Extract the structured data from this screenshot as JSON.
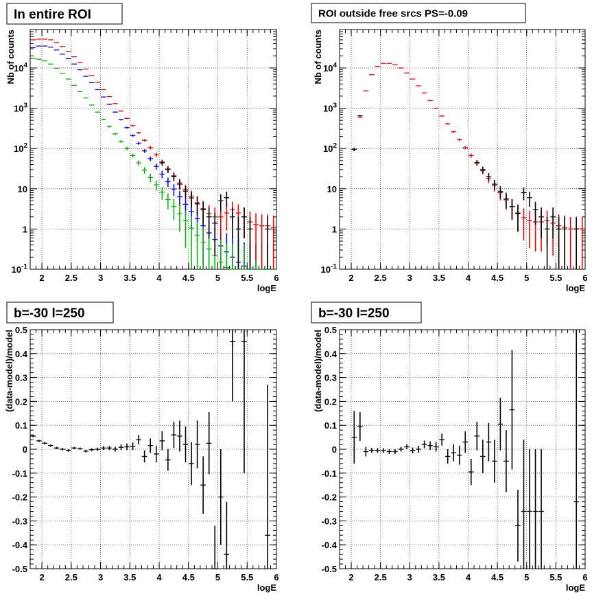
{
  "chart_data": [
    {
      "type": "scatter",
      "title": "In entire ROI",
      "xlabel": "logE",
      "ylabel": "Nb of counts",
      "xlim": [
        1.8,
        6.0
      ],
      "ylim": [
        0.1,
        90000
      ],
      "yscale": "log",
      "grid": true,
      "x_ticks": [
        "2",
        "2.5",
        "3",
        "3.5",
        "4",
        "4.5",
        "5",
        "5.5",
        "6"
      ],
      "y_ticks": [
        "10^{-1}",
        "1",
        "10",
        "10^{2}",
        "10^{3}",
        "10^{4}"
      ],
      "series": [
        {
          "color": "#0000ff",
          "x": [
            1.85,
            1.95,
            2.05,
            2.15,
            2.25,
            2.35,
            2.45,
            2.55,
            2.65,
            2.75,
            2.85,
            2.95,
            3.05,
            3.15,
            3.25,
            3.35,
            3.45,
            3.55,
            3.65,
            3.75,
            3.85,
            3.95,
            4.05,
            4.15,
            4.25,
            4.35,
            4.45,
            4.55,
            4.65,
            4.75,
            4.85,
            4.95,
            5.05,
            5.15,
            5.25,
            5.35,
            5.45,
            5.55,
            5.65,
            5.75,
            5.85,
            5.95
          ],
          "values": [
            32000,
            35000,
            35000,
            33000,
            28000,
            22000,
            17000,
            12500,
            9000,
            6200,
            4300,
            2900,
            1900,
            1250,
            800,
            520,
            330,
            210,
            135,
            87,
            56,
            36,
            23,
            15,
            9.8,
            6.3,
            4.1,
            2.7,
            1.8,
            1.2,
            0.8,
            0.55,
            0.38,
            0.27,
            0.2,
            0.15,
            0.12,
            0.1,
            0.1,
            0.1,
            0.1,
            0.1
          ]
        },
        {
          "color": "#00bb00",
          "x": [
            1.85,
            1.95,
            2.05,
            2.15,
            2.25,
            2.35,
            2.45,
            2.55,
            2.65,
            2.75,
            2.85,
            2.95,
            3.05,
            3.15,
            3.25,
            3.35,
            3.45,
            3.55,
            3.65,
            3.75,
            3.85,
            3.95,
            4.05,
            4.15,
            4.25,
            4.35,
            4.45,
            4.55,
            4.65,
            4.75,
            4.85,
            4.95,
            5.05,
            5.15,
            5.25,
            5.35,
            5.45,
            5.55,
            5.65,
            5.75,
            5.85,
            5.95
          ],
          "values": [
            17000,
            16500,
            15000,
            12500,
            9800,
            7300,
            5300,
            3700,
            2600,
            1800,
            1200,
            800,
            530,
            350,
            230,
            150,
            100,
            67,
            44,
            29,
            19,
            12.5,
            8.2,
            5.4,
            3.6,
            2.4,
            1.6,
            1.05,
            0.7,
            0.47,
            0.32,
            0.22,
            0.15,
            0.11,
            0.1,
            0.1,
            0.1,
            0.1,
            0.1,
            0.1,
            0.1,
            0.1
          ]
        },
        {
          "color": "#ff0000",
          "x": [
            1.85,
            1.95,
            2.05,
            2.15,
            2.25,
            2.35,
            2.45,
            2.55,
            2.65,
            2.75,
            2.85,
            2.95,
            3.05,
            3.15,
            3.25,
            3.35,
            3.45,
            3.55,
            3.65,
            3.75,
            3.85,
            3.95,
            4.05,
            4.15,
            4.25,
            4.35,
            4.45,
            4.55,
            4.65,
            4.75,
            4.85,
            4.95,
            5.05,
            5.15,
            5.25,
            5.35,
            5.45,
            5.55,
            5.65,
            5.75,
            5.85,
            5.95
          ],
          "values": [
            50000,
            52000,
            52000,
            50000,
            43000,
            34000,
            26000,
            19000,
            13500,
            9400,
            6500,
            4400,
            2900,
            1950,
            1300,
            850,
            560,
            370,
            245,
            160,
            105,
            70,
            46,
            31,
            21,
            14,
            9.5,
            6.5,
            4.5,
            3.2,
            2.4,
            2.0,
            2.0,
            2.5,
            3.0,
            2.5,
            2.0,
            1.5,
            1.3,
            1.2,
            1.2,
            1.1
          ]
        },
        {
          "color": "#000000",
          "x": [
            4.05,
            4.15,
            4.25,
            4.35,
            4.45,
            4.55,
            4.65,
            4.75,
            4.85,
            4.95,
            5.05,
            5.15,
            5.25,
            5.35,
            5.45,
            5.55,
            5.85
          ],
          "values": [
            44,
            30,
            20,
            13,
            8.7,
            5.9,
            4.2,
            3,
            2,
            1.4,
            5,
            6,
            2,
            1,
            2,
            1,
            1
          ]
        }
      ]
    },
    {
      "type": "scatter",
      "title": "ROI outside free srcs PS=-0.09",
      "xlabel": "logE",
      "ylabel": "Nb of counts",
      "xlim": [
        1.8,
        6.0
      ],
      "ylim": [
        0.1,
        90000
      ],
      "yscale": "log",
      "grid": true,
      "x_ticks": [
        "2",
        "2.5",
        "3",
        "3.5",
        "4",
        "4.5",
        "5",
        "5.5",
        "6"
      ],
      "y_ticks": [
        "10^{-1}",
        "1",
        "10",
        "10^{2}",
        "10^{3}",
        "10^{4}"
      ],
      "series": [
        {
          "color": "#ff0000",
          "x": [
            2.05,
            2.15,
            2.25,
            2.35,
            2.45,
            2.55,
            2.65,
            2.75,
            2.85,
            2.95,
            3.05,
            3.15,
            3.25,
            3.35,
            3.45,
            3.55,
            3.65,
            3.75,
            3.85,
            3.95,
            4.05,
            4.15,
            4.25,
            4.35,
            4.45,
            4.55,
            4.65,
            4.75,
            4.85,
            4.95,
            5.05,
            5.15,
            5.25,
            5.35,
            5.45,
            5.55,
            5.65,
            5.75,
            5.85,
            5.95
          ],
          "values": [
            95,
            600,
            2700,
            6800,
            11000,
            13000,
            13000,
            12000,
            10000,
            7500,
            5300,
            3600,
            2400,
            1550,
            1000,
            640,
            410,
            260,
            165,
            105,
            67,
            43,
            28,
            18,
            12,
            8,
            5.3,
            3.6,
            2.5,
            1.9,
            1.6,
            1.5,
            1.5,
            1.6,
            1.4,
            1.2,
            1.1,
            1,
            1,
            1
          ]
        },
        {
          "color": "#000000",
          "x": [
            2.05,
            2.15,
            4.15,
            4.25,
            4.35,
            4.45,
            4.55,
            4.65,
            4.75,
            4.85,
            4.95,
            5.05,
            5.15,
            5.25,
            5.35,
            5.45,
            5.55,
            5.65,
            5.85
          ],
          "values": [
            95,
            650,
            45,
            30,
            20,
            13,
            8.6,
            5.6,
            3.6,
            2.4,
            8,
            6,
            3,
            2,
            1,
            2,
            1,
            1,
            1
          ]
        }
      ]
    },
    {
      "type": "scatter",
      "title": "b=-30 l=250",
      "xlabel": "logE",
      "ylabel": "(data-model)/model",
      "xlim": [
        1.8,
        6.0
      ],
      "ylim": [
        -0.5,
        0.5
      ],
      "grid": true,
      "x_ticks": [
        "2",
        "2.5",
        "3",
        "3.5",
        "4",
        "4.5",
        "5",
        "5.5",
        "6"
      ],
      "y_ticks": [
        "-0.5",
        "-0.4",
        "-0.3",
        "-0.2",
        "-0.1",
        "0",
        "0.1",
        "0.2",
        "0.3",
        "0.4",
        "0.5"
      ],
      "series": [
        {
          "color": "#000000",
          "x": [
            1.85,
            1.95,
            2.05,
            2.15,
            2.25,
            2.35,
            2.45,
            2.55,
            2.65,
            2.75,
            2.85,
            2.95,
            3.05,
            3.15,
            3.25,
            3.35,
            3.45,
            3.55,
            3.65,
            3.75,
            3.85,
            3.95,
            4.05,
            4.15,
            4.25,
            4.35,
            4.45,
            4.55,
            4.65,
            4.75,
            4.85,
            4.95,
            5.05,
            5.15,
            5.25,
            5.45,
            5.85
          ],
          "values": [
            0.055,
            0.035,
            0.025,
            0.015,
            0.005,
            0.0,
            -0.005,
            0.005,
            0.002,
            -0.008,
            -0.002,
            0.0,
            0.005,
            0.005,
            0.0,
            0.008,
            0.01,
            0.012,
            0.04,
            -0.03,
            0.015,
            -0.02,
            0.035,
            -0.045,
            0.06,
            0.055,
            0.02,
            -0.06,
            0.02,
            -0.15,
            0.025,
            -0.5,
            -0.2,
            -0.44,
            0.45,
            0.45,
            -0.36
          ],
          "errors": [
            0.005,
            0.005,
            0.005,
            0.005,
            0.005,
            0.005,
            0.005,
            0.005,
            0.005,
            0.006,
            0.006,
            0.007,
            0.008,
            0.009,
            0.01,
            0.012,
            0.014,
            0.016,
            0.02,
            0.025,
            0.03,
            0.035,
            0.04,
            0.045,
            0.055,
            0.065,
            0.075,
            0.09,
            0.1,
            0.12,
            0.13,
            0.18,
            0.2,
            0.22,
            0.25,
            0.55,
            0.63
          ]
        }
      ]
    },
    {
      "type": "scatter",
      "title": "b=-30 l=250",
      "xlabel": "logE",
      "ylabel": "(data-model)/model",
      "xlim": [
        1.8,
        6.0
      ],
      "ylim": [
        -0.5,
        0.5
      ],
      "grid": true,
      "x_ticks": [
        "2",
        "2.5",
        "3",
        "3.5",
        "4",
        "4.5",
        "5",
        "5.5",
        "6"
      ],
      "y_ticks": [
        "-0.5",
        "-0.4",
        "-0.3",
        "-0.2",
        "-0.1",
        "0",
        "0.1",
        "0.2",
        "0.3",
        "0.4",
        "0.5"
      ],
      "series": [
        {
          "color": "#000000",
          "x": [
            2.05,
            2.15,
            2.25,
            2.35,
            2.45,
            2.55,
            2.65,
            2.75,
            2.85,
            2.95,
            3.05,
            3.15,
            3.25,
            3.35,
            3.45,
            3.55,
            3.65,
            3.75,
            3.85,
            3.95,
            4.05,
            4.15,
            4.25,
            4.35,
            4.45,
            4.55,
            4.65,
            4.75,
            4.85,
            4.95,
            5.05,
            5.15,
            5.25,
            5.85
          ],
          "values": [
            0.05,
            0.095,
            -0.01,
            -0.005,
            -0.005,
            -0.005,
            -0.01,
            -0.01,
            0.0,
            0.01,
            -0.005,
            0.0,
            0.02,
            0.015,
            0.01,
            0.04,
            -0.03,
            -0.015,
            -0.025,
            0.03,
            -0.095,
            0.055,
            -0.03,
            0.03,
            -0.05,
            0.105,
            -0.05,
            0.165,
            -0.32,
            -0.26,
            -0.26,
            -0.26,
            -0.26,
            -0.22
          ],
          "errors": [
            0.11,
            0.06,
            0.02,
            0.01,
            0.01,
            0.01,
            0.01,
            0.01,
            0.01,
            0.01,
            0.012,
            0.014,
            0.016,
            0.018,
            0.02,
            0.025,
            0.03,
            0.035,
            0.04,
            0.045,
            0.055,
            0.06,
            0.07,
            0.08,
            0.09,
            0.11,
            0.13,
            0.25,
            0.15,
            0.3,
            0.26,
            0.26,
            0.26,
            0.72
          ]
        }
      ]
    }
  ]
}
